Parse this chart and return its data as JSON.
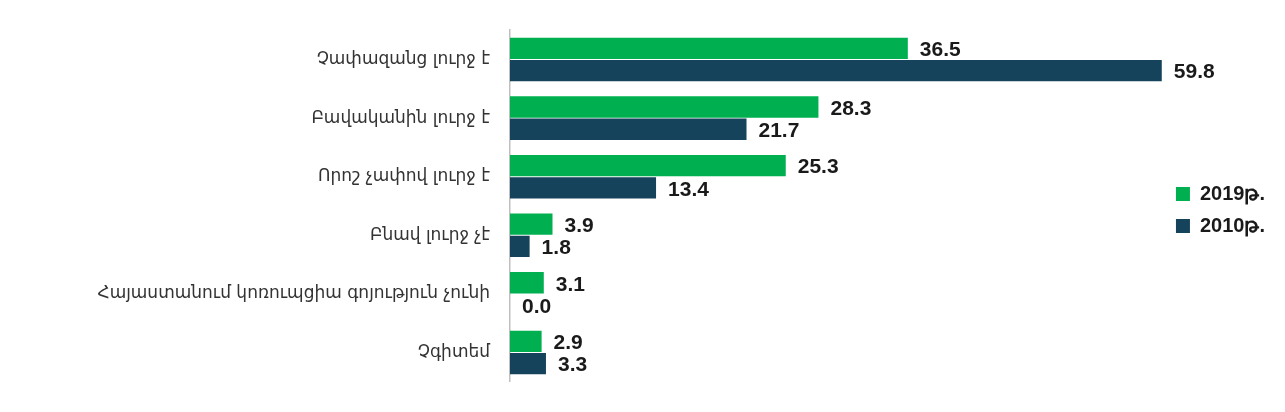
{
  "chart_data": {
    "type": "bar",
    "orientation": "horizontal",
    "categories": [
      "Չափազանց լուրջ է",
      "Բավականին լուրջ է",
      "Որոշ չափով լուրջ է",
      "Բնավ լուրջ չէ",
      "Հայաստանում կոռուպցիա գոյություն չունի",
      "Չգիտեմ"
    ],
    "series": [
      {
        "name": "2019թ.",
        "color": "#00b050",
        "values": [
          36.5,
          28.3,
          25.3,
          3.9,
          3.1,
          2.9
        ],
        "value_labels": [
          "36.5",
          "28.3",
          "25.3",
          "3.9",
          "3.1",
          "2.9"
        ]
      },
      {
        "name": "2010թ.",
        "color": "#16435c",
        "values": [
          59.8,
          21.7,
          13.4,
          1.8,
          0.0,
          3.3
        ],
        "value_labels": [
          "59.8",
          "21.7",
          "13.4",
          "1.8",
          "0.0",
          "3.3"
        ]
      }
    ],
    "legend": "right",
    "grid": false,
    "tick_labels": "y"
  }
}
